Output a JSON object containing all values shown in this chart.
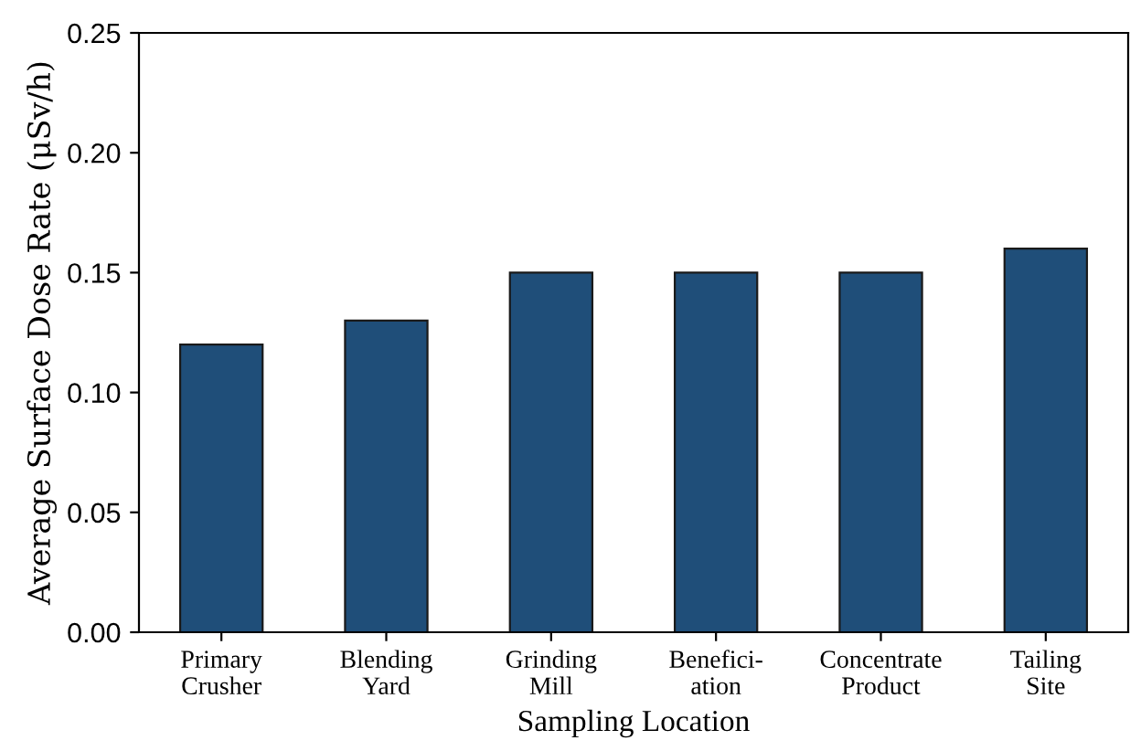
{
  "chart_data": {
    "type": "bar",
    "categories": [
      "Primary\nCrusher",
      "Blending\nYard",
      "Grinding\nMill",
      "Benefici-\nation",
      "Concentrate\nProduct",
      "Tailing\nSite"
    ],
    "values": [
      0.12,
      0.13,
      0.15,
      0.15,
      0.15,
      0.16
    ],
    "color": "#1f4e79",
    "xlabel": "Sampling Location",
    "ylabel": "Average Surface Dose Rate (μSv/h)",
    "ylim": [
      0,
      0.25
    ],
    "yticks": [
      {
        "value": 0,
        "label": "0.00"
      },
      {
        "value": 0.05,
        "label": "0.05"
      },
      {
        "value": 0.1,
        "label": "0.10"
      },
      {
        "value": 0.15,
        "label": "0.15"
      },
      {
        "value": 0.2,
        "label": "0.20"
      },
      {
        "value": 0.25,
        "label": "0.25"
      }
    ],
    "grid": false
  }
}
